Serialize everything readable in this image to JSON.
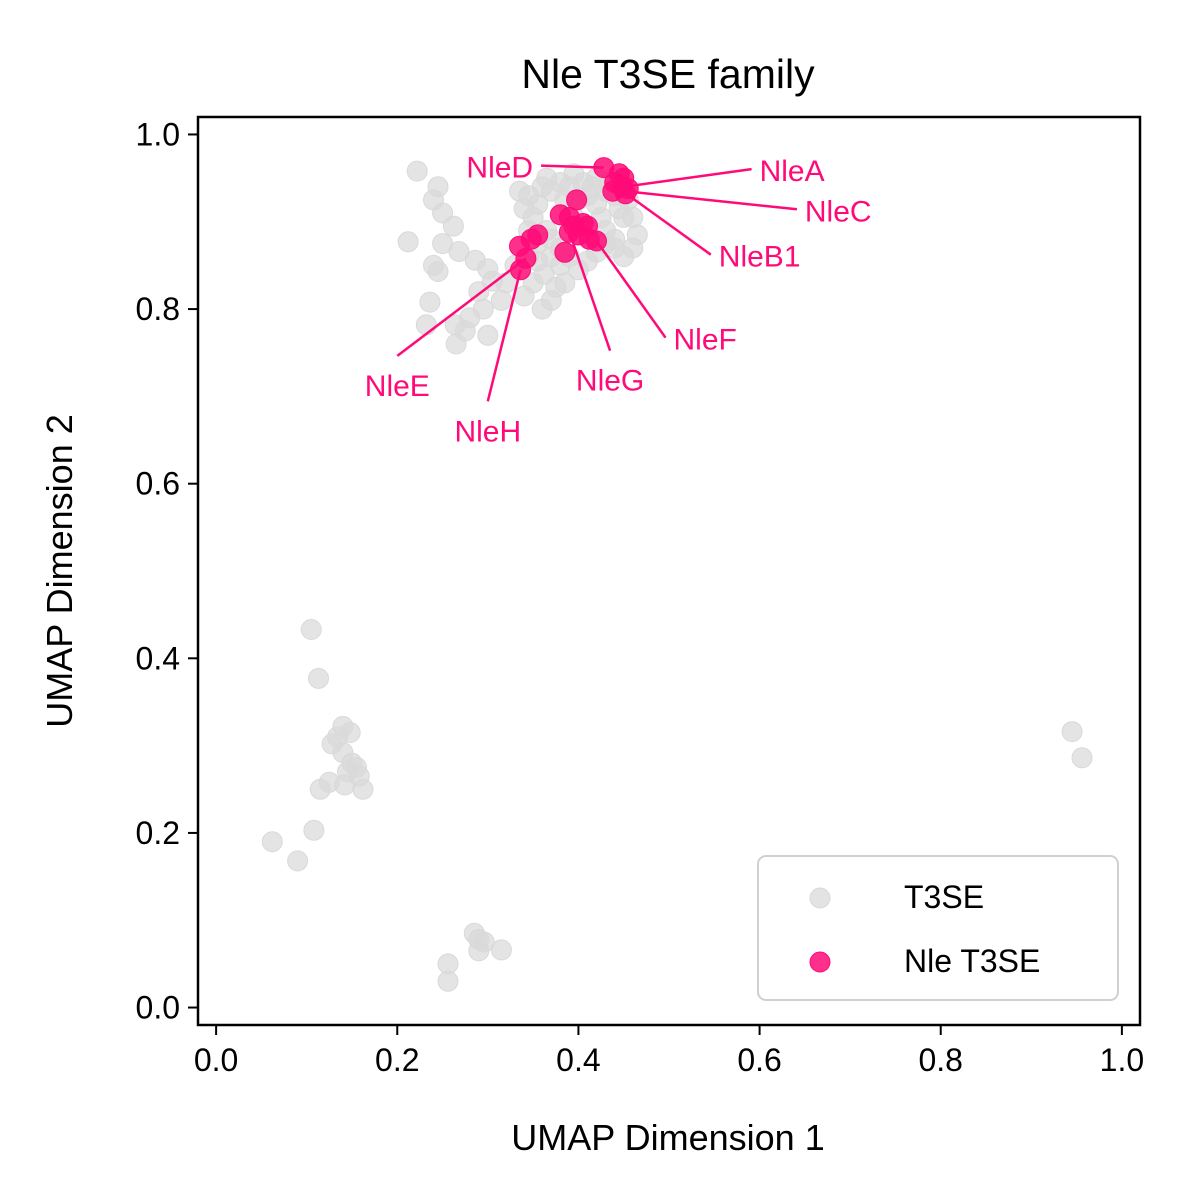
{
  "chart_data": {
    "type": "scatter",
    "title": "Nle T3SE family",
    "xlabel": "UMAP Dimension 1",
    "ylabel": "UMAP Dimension 2",
    "xlim": [
      -0.02,
      1.02
    ],
    "ylim": [
      -0.02,
      1.02
    ],
    "xticks": [
      "0.0",
      "0.2",
      "0.4",
      "0.6",
      "0.8",
      "1.0"
    ],
    "yticks": [
      "0.0",
      "0.2",
      "0.4",
      "0.6",
      "0.8",
      "1.0"
    ],
    "grid": false,
    "legend_position": "lower-right",
    "series": [
      {
        "name": "T3SE",
        "color": "#d9d9d9",
        "points": [
          [
            0.222,
            0.958
          ],
          [
            0.245,
            0.94
          ],
          [
            0.24,
            0.925
          ],
          [
            0.25,
            0.91
          ],
          [
            0.262,
            0.895
          ],
          [
            0.212,
            0.877
          ],
          [
            0.25,
            0.875
          ],
          [
            0.268,
            0.866
          ],
          [
            0.286,
            0.856
          ],
          [
            0.3,
            0.846
          ],
          [
            0.24,
            0.85
          ],
          [
            0.245,
            0.843
          ],
          [
            0.236,
            0.808
          ],
          [
            0.232,
            0.782
          ],
          [
            0.264,
            0.782
          ],
          [
            0.29,
            0.82
          ],
          [
            0.305,
            0.832
          ],
          [
            0.295,
            0.8
          ],
          [
            0.28,
            0.79
          ],
          [
            0.275,
            0.775
          ],
          [
            0.265,
            0.76
          ],
          [
            0.3,
            0.77
          ],
          [
            0.315,
            0.81
          ],
          [
            0.32,
            0.83
          ],
          [
            0.33,
            0.85
          ],
          [
            0.345,
            0.86
          ],
          [
            0.355,
            0.875
          ],
          [
            0.365,
            0.89
          ],
          [
            0.37,
            0.86
          ],
          [
            0.38,
            0.85
          ],
          [
            0.385,
            0.83
          ],
          [
            0.37,
            0.81
          ],
          [
            0.36,
            0.8
          ],
          [
            0.35,
            0.83
          ],
          [
            0.34,
            0.815
          ],
          [
            0.335,
            0.935
          ],
          [
            0.345,
            0.93
          ],
          [
            0.34,
            0.915
          ],
          [
            0.35,
            0.905
          ],
          [
            0.355,
            0.92
          ],
          [
            0.36,
            0.94
          ],
          [
            0.365,
            0.95
          ],
          [
            0.37,
            0.935
          ],
          [
            0.38,
            0.945
          ],
          [
            0.385,
            0.925
          ],
          [
            0.39,
            0.94
          ],
          [
            0.395,
            0.955
          ],
          [
            0.405,
            0.945
          ],
          [
            0.41,
            0.93
          ],
          [
            0.42,
            0.92
          ],
          [
            0.425,
            0.905
          ],
          [
            0.43,
            0.89
          ],
          [
            0.44,
            0.88
          ],
          [
            0.45,
            0.905
          ],
          [
            0.455,
            0.925
          ],
          [
            0.46,
            0.905
          ],
          [
            0.465,
            0.885
          ],
          [
            0.46,
            0.87
          ],
          [
            0.45,
            0.86
          ],
          [
            0.44,
            0.87
          ],
          [
            0.43,
            0.875
          ],
          [
            0.42,
            0.865
          ],
          [
            0.41,
            0.855
          ],
          [
            0.4,
            0.845
          ],
          [
            0.39,
            0.86
          ],
          [
            0.38,
            0.87
          ],
          [
            0.37,
            0.88
          ],
          [
            0.42,
            0.95
          ],
          [
            0.435,
            0.945
          ],
          [
            0.44,
            0.93
          ],
          [
            0.445,
            0.915
          ],
          [
            0.43,
            0.935
          ],
          [
            0.415,
            0.94
          ],
          [
            0.4,
            0.925
          ],
          [
            0.395,
            0.905
          ],
          [
            0.405,
            0.885
          ],
          [
            0.345,
            0.89
          ],
          [
            0.355,
            0.855
          ],
          [
            0.362,
            0.84
          ],
          [
            0.375,
            0.825
          ],
          [
            0.105,
            0.433
          ],
          [
            0.113,
            0.377
          ],
          [
            0.14,
            0.322
          ],
          [
            0.148,
            0.315
          ],
          [
            0.134,
            0.31
          ],
          [
            0.128,
            0.302
          ],
          [
            0.14,
            0.292
          ],
          [
            0.15,
            0.28
          ],
          [
            0.155,
            0.275
          ],
          [
            0.158,
            0.265
          ],
          [
            0.145,
            0.27
          ],
          [
            0.125,
            0.258
          ],
          [
            0.142,
            0.255
          ],
          [
            0.115,
            0.25
          ],
          [
            0.162,
            0.25
          ],
          [
            0.108,
            0.203
          ],
          [
            0.062,
            0.19
          ],
          [
            0.09,
            0.168
          ],
          [
            0.285,
            0.085
          ],
          [
            0.29,
            0.078
          ],
          [
            0.296,
            0.075
          ],
          [
            0.315,
            0.066
          ],
          [
            0.29,
            0.065
          ],
          [
            0.256,
            0.05
          ],
          [
            0.256,
            0.03
          ],
          [
            0.945,
            0.316
          ],
          [
            0.956,
            0.286
          ]
        ]
      },
      {
        "name": "Nle T3SE",
        "color": "#ff0a78",
        "points": [
          [
            0.428,
            0.962
          ],
          [
            0.445,
            0.955
          ],
          [
            0.45,
            0.95
          ],
          [
            0.44,
            0.945
          ],
          [
            0.448,
            0.94
          ],
          [
            0.438,
            0.935
          ],
          [
            0.452,
            0.932
          ],
          [
            0.455,
            0.938
          ],
          [
            0.398,
            0.925
          ],
          [
            0.39,
            0.905
          ],
          [
            0.38,
            0.908
          ],
          [
            0.395,
            0.895
          ],
          [
            0.405,
            0.898
          ],
          [
            0.41,
            0.895
          ],
          [
            0.4,
            0.885
          ],
          [
            0.39,
            0.888
          ],
          [
            0.412,
            0.88
          ],
          [
            0.42,
            0.878
          ],
          [
            0.385,
            0.865
          ],
          [
            0.355,
            0.885
          ],
          [
            0.348,
            0.88
          ],
          [
            0.335,
            0.872
          ],
          [
            0.342,
            0.858
          ],
          [
            0.336,
            0.845
          ]
        ]
      }
    ],
    "annotations": [
      {
        "text": "NleA",
        "point": [
          0.45,
          0.94
        ],
        "text_at": [
          0.6,
          0.958
        ],
        "align": "start"
      },
      {
        "text": "NleC",
        "point": [
          0.452,
          0.935
        ],
        "text_at": [
          0.65,
          0.912
        ],
        "align": "start"
      },
      {
        "text": "NleB1",
        "point": [
          0.453,
          0.932
        ],
        "text_at": [
          0.555,
          0.86
        ],
        "align": "start"
      },
      {
        "text": "NleD",
        "point": [
          0.428,
          0.962
        ],
        "text_at": [
          0.35,
          0.962
        ],
        "align": "end"
      },
      {
        "text": "NleF",
        "point": [
          0.42,
          0.878
        ],
        "text_at": [
          0.505,
          0.765
        ],
        "align": "start"
      },
      {
        "text": "NleG",
        "point": [
          0.39,
          0.888
        ],
        "text_at": [
          0.435,
          0.718
        ],
        "align": "middle"
      },
      {
        "text": "NleE",
        "point": [
          0.342,
          0.858
        ],
        "text_at": [
          0.2,
          0.712
        ],
        "align": "middle"
      },
      {
        "text": "NleH",
        "point": [
          0.336,
          0.845
        ],
        "text_at": [
          0.3,
          0.66
        ],
        "align": "middle"
      }
    ]
  }
}
